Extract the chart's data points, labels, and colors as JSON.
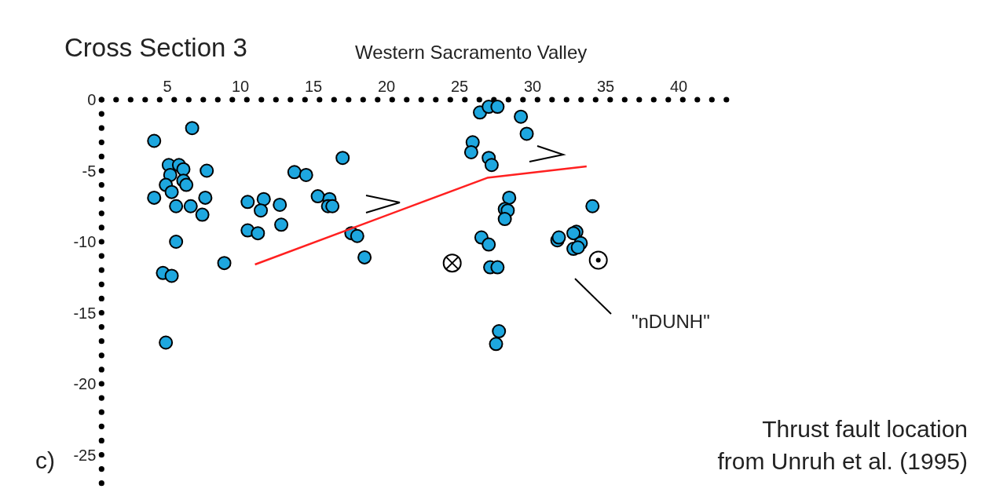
{
  "chart_data": {
    "type": "scatter",
    "title": "Cross Section 3",
    "subtitle": "Western Sacramento Valley",
    "xlim": [
      0.5,
      44
    ],
    "ylim": [
      -27.5,
      0
    ],
    "xticks": [
      5,
      10,
      15,
      20,
      25,
      30,
      35,
      40
    ],
    "yticks": [
      0,
      -5,
      -10,
      -15,
      -20,
      -25
    ],
    "grid": false,
    "series": [
      {
        "marker": "circle",
        "color": "#1ea7df",
        "x": [
          4.1,
          6.7,
          4.1,
          5.1,
          5.8,
          6.1,
          5.2,
          4.9,
          6.1,
          6.3,
          5.3,
          7.7,
          7.6,
          5.6,
          6.6,
          7.4,
          5.6,
          4.7,
          5.3,
          4.9,
          8.9,
          10.5,
          11.6,
          11.4,
          12.7,
          12.8,
          10.5,
          11.2,
          13.7,
          14.5,
          15.3,
          16.1,
          16.0,
          16.3,
          17.0,
          17.6,
          18.0,
          18.5,
          26.4,
          27.0,
          27.6,
          29.2,
          29.6,
          25.9,
          25.8,
          27.0,
          27.2,
          28.4,
          28.1,
          28.3,
          28.1,
          26.5,
          27.0,
          27.1,
          27.6,
          27.7,
          27.5,
          34.1,
          31.7,
          31.8,
          33.0,
          32.8,
          33.3,
          32.8,
          33.1
        ],
        "values": [
          -2.9,
          -2.0,
          -6.9,
          -4.6,
          -4.6,
          -4.9,
          -5.3,
          -6.0,
          -5.7,
          -6.0,
          -6.5,
          -5.0,
          -6.9,
          -7.5,
          -7.5,
          -8.1,
          -10.0,
          -12.2,
          -12.4,
          -17.1,
          -11.5,
          -7.2,
          -7.0,
          -7.8,
          -7.4,
          -8.8,
          -9.2,
          -9.4,
          -5.1,
          -5.3,
          -6.8,
          -7.0,
          -7.5,
          -7.5,
          -4.1,
          -9.4,
          -9.6,
          -11.1,
          -0.9,
          -0.5,
          -0.5,
          -1.2,
          -2.4,
          -3.0,
          -3.7,
          -4.1,
          -4.6,
          -6.9,
          -7.7,
          -7.8,
          -8.4,
          -9.7,
          -10.2,
          -11.8,
          -11.8,
          -16.3,
          -17.2,
          -7.5,
          -9.9,
          -9.7,
          -9.3,
          -9.4,
          -10.1,
          -10.5,
          -10.4
        ]
      },
      {
        "type": "scatter",
        "marker": "cross",
        "color": "#000000",
        "x": [
          24.5
        ],
        "values": [
          -11.5
        ]
      },
      {
        "type": "scatter",
        "marker": "circle",
        "color": "#000000",
        "x": [
          34.5
        ],
        "values": [
          -11.3
        ]
      },
      {
        "type": "line",
        "color": "#ff2020",
        "x": [
          11.0,
          26.9,
          33.7
        ],
        "values": [
          -11.6,
          -5.5,
          -4.7
        ]
      }
    ],
    "annotations": [
      "\"nDUNH\"",
      "c)",
      "Thrust fault location\nfrom Unruh et al. (1995)"
    ]
  }
}
